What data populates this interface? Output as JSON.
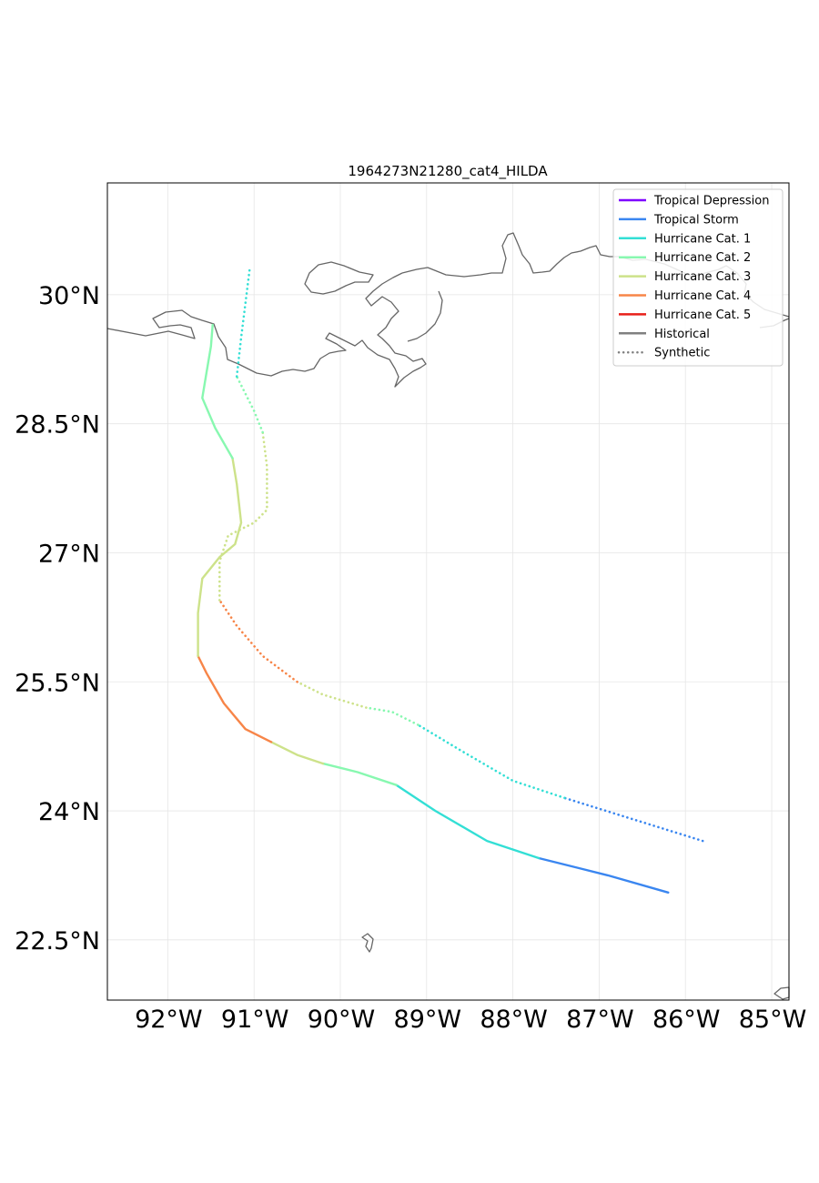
{
  "chart_data": {
    "type": "map",
    "title": "1964273N21280_cat4_HILDA",
    "projection": "PlateCarree",
    "extent": {
      "lon": [
        -92.7,
        -84.8
      ],
      "lat": [
        21.8,
        31.3
      ]
    },
    "grid": true,
    "x_ticks": [
      {
        "value": -92,
        "label": "92°W"
      },
      {
        "value": -91,
        "label": "91°W"
      },
      {
        "value": -90,
        "label": "90°W"
      },
      {
        "value": -89,
        "label": "89°W"
      },
      {
        "value": -88,
        "label": "88°W"
      },
      {
        "value": -87,
        "label": "87°W"
      },
      {
        "value": -86,
        "label": "86°W"
      },
      {
        "value": -85,
        "label": "85°W"
      }
    ],
    "y_ticks": [
      {
        "value": 30,
        "label": "30°N"
      },
      {
        "value": 28.5,
        "label": "28.5°N"
      },
      {
        "value": 27,
        "label": "27°N"
      },
      {
        "value": 25.5,
        "label": "25.5°N"
      },
      {
        "value": 24,
        "label": "24°N"
      },
      {
        "value": 22.5,
        "label": "22.5°N"
      }
    ],
    "legend": {
      "placement": "top-right",
      "entries": [
        {
          "label": "Tropical Depression",
          "color": "#7f00ff",
          "style": "solid"
        },
        {
          "label": "Tropical Storm",
          "color": "#3a86f0",
          "style": "solid"
        },
        {
          "label": "Hurricane Cat. 1",
          "color": "#33dfd5",
          "style": "solid"
        },
        {
          "label": "Hurricane Cat. 2",
          "color": "#88f8b0",
          "style": "solid"
        },
        {
          "label": "Hurricane Cat. 3",
          "color": "#cde28a",
          "style": "solid"
        },
        {
          "label": "Hurricane Cat. 4",
          "color": "#f78548",
          "style": "solid"
        },
        {
          "label": "Hurricane Cat. 5",
          "color": "#e8201a",
          "style": "solid"
        },
        {
          "label": "Historical",
          "color": "#808080",
          "style": "solid"
        },
        {
          "label": "Synthetic",
          "color": "#808080",
          "style": "dotted"
        }
      ]
    },
    "category_colors": {
      "TS": "#3a86f0",
      "C1": "#33dfd5",
      "C2": "#88f8b0",
      "C3": "#cde28a",
      "C4": "#f78548"
    },
    "series": [
      {
        "kind": "historical",
        "segments": [
          {
            "cat": "TS",
            "points": [
              [
                -86.2,
                23.05
              ],
              [
                -86.9,
                23.25
              ],
              [
                -87.7,
                23.45
              ]
            ]
          },
          {
            "cat": "C1",
            "points": [
              [
                -87.7,
                23.45
              ],
              [
                -88.3,
                23.65
              ],
              [
                -88.9,
                24.0
              ],
              [
                -89.35,
                24.3
              ]
            ]
          },
          {
            "cat": "C2",
            "points": [
              [
                -89.35,
                24.3
              ],
              [
                -89.8,
                24.45
              ],
              [
                -90.2,
                24.55
              ]
            ]
          },
          {
            "cat": "C3",
            "points": [
              [
                -90.2,
                24.55
              ],
              [
                -90.5,
                24.65
              ],
              [
                -90.8,
                24.8
              ]
            ]
          },
          {
            "cat": "C4",
            "points": [
              [
                -90.8,
                24.8
              ],
              [
                -91.1,
                24.95
              ],
              [
                -91.35,
                25.25
              ],
              [
                -91.55,
                25.6
              ],
              [
                -91.65,
                25.8
              ]
            ]
          },
          {
            "cat": "C3",
            "points": [
              [
                -91.65,
                25.8
              ],
              [
                -91.65,
                26.3
              ],
              [
                -91.6,
                26.7
              ],
              [
                -91.4,
                26.95
              ],
              [
                -91.22,
                27.1
              ],
              [
                -91.15,
                27.35
              ],
              [
                -91.2,
                27.8
              ],
              [
                -91.25,
                28.1
              ]
            ]
          },
          {
            "cat": "C2",
            "points": [
              [
                -91.25,
                28.1
              ],
              [
                -91.45,
                28.45
              ],
              [
                -91.6,
                28.8
              ],
              [
                -91.55,
                29.1
              ],
              [
                -91.5,
                29.4
              ],
              [
                -91.48,
                29.65
              ]
            ]
          }
        ]
      },
      {
        "kind": "synthetic",
        "segments": [
          {
            "cat": "TS",
            "points": [
              [
                -85.8,
                23.65
              ],
              [
                -86.6,
                23.9
              ],
              [
                -87.4,
                24.15
              ]
            ]
          },
          {
            "cat": "C1",
            "points": [
              [
                -87.4,
                24.15
              ],
              [
                -88.0,
                24.35
              ],
              [
                -88.6,
                24.7
              ],
              [
                -89.1,
                25.0
              ]
            ]
          },
          {
            "cat": "C2",
            "points": [
              [
                -89.1,
                25.0
              ],
              [
                -89.4,
                25.15
              ],
              [
                -89.7,
                25.2
              ]
            ]
          },
          {
            "cat": "C3",
            "points": [
              [
                -89.7,
                25.2
              ],
              [
                -90.2,
                25.35
              ],
              [
                -90.5,
                25.5
              ]
            ]
          },
          {
            "cat": "C4",
            "points": [
              [
                -90.5,
                25.5
              ],
              [
                -90.9,
                25.8
              ],
              [
                -91.2,
                26.15
              ],
              [
                -91.4,
                26.45
              ]
            ]
          },
          {
            "cat": "C3",
            "points": [
              [
                -91.4,
                26.45
              ],
              [
                -91.4,
                26.9
              ],
              [
                -91.3,
                27.2
              ],
              [
                -91.0,
                27.35
              ],
              [
                -90.85,
                27.5
              ],
              [
                -90.85,
                28.0
              ],
              [
                -90.9,
                28.4
              ]
            ]
          },
          {
            "cat": "C2",
            "points": [
              [
                -90.9,
                28.4
              ],
              [
                -91.0,
                28.65
              ],
              [
                -91.1,
                28.85
              ],
              [
                -91.2,
                29.05
              ]
            ]
          },
          {
            "cat": "C1",
            "points": [
              [
                -91.2,
                29.05
              ],
              [
                -91.15,
                29.5
              ],
              [
                -91.1,
                29.9
              ],
              [
                -91.05,
                30.3
              ]
            ]
          }
        ]
      }
    ]
  }
}
